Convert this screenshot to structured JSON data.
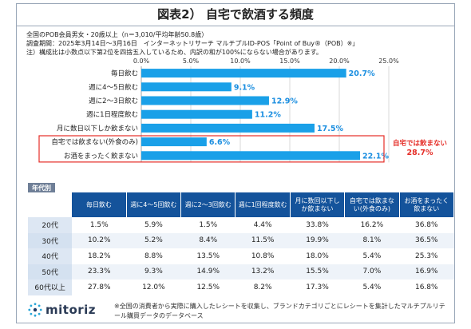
{
  "title": "図表2） 自宅で飲酒する頻度",
  "meta": {
    "line1": "全国のPOB会員男女・20歳以上（n＝3,010/平均年齢50.8歳）",
    "line2": "調査期間：2025年3月14日～3月16日　インターネットリサーチ マルチプルID-POS「Point of Buy®（POB）※」",
    "line3": "注）構成比は小数点以下第2位を四捨五入しているため、内訳の和が100%にならない場合があります。"
  },
  "chart_data": {
    "type": "bar",
    "orientation": "horizontal",
    "categories": [
      "毎日飲む",
      "週に4～5日飲む",
      "週に2～3日飲む",
      "週に1日程度飲む",
      "月に数日以下しか飲まない",
      "自宅では飲まない(外食のみ)",
      "お酒をまったく飲まない"
    ],
    "values": [
      20.7,
      9.1,
      12.9,
      11.2,
      17.5,
      6.6,
      22.1
    ],
    "value_labels": [
      "20.7%",
      "9.1%",
      "12.9%",
      "11.2%",
      "17.5%",
      "6.6%",
      "22.1%"
    ],
    "xlim": [
      0,
      25
    ],
    "ticks": [
      "0.0%",
      "5.0%",
      "10.0%",
      "15.0%",
      "20.0%",
      "25.0%"
    ],
    "grid": true,
    "bar_color": "#1aa0e8",
    "label_color": "#1a8ee0",
    "highlight": {
      "label_line1": "自宅では飲まない",
      "label_line2": "28.7%",
      "color": "#e52d27"
    }
  },
  "table": {
    "section_label": "年代別",
    "headers": [
      "毎日飲む",
      "週に4～5回飲む",
      "週に2～3回飲む",
      "週に1回程度飲む",
      "月に数回以下しか飲まない",
      "自宅では飲まない(外食のみ)",
      "お酒をまったく飲まない"
    ],
    "rows": [
      {
        "label": "20代",
        "values": [
          "1.5%",
          "5.9%",
          "1.5%",
          "4.4%",
          "33.8%",
          "16.2%",
          "36.8%"
        ]
      },
      {
        "label": "30代",
        "values": [
          "10.2%",
          "5.2%",
          "8.4%",
          "11.5%",
          "19.9%",
          "8.1%",
          "36.5%"
        ]
      },
      {
        "label": "40代",
        "values": [
          "18.2%",
          "8.8%",
          "13.5%",
          "10.8%",
          "18.0%",
          "5.4%",
          "25.3%"
        ]
      },
      {
        "label": "50代",
        "values": [
          "23.3%",
          "9.3%",
          "14.9%",
          "13.2%",
          "15.5%",
          "7.0%",
          "16.9%"
        ]
      },
      {
        "label": "60代以上",
        "values": [
          "27.8%",
          "12.0%",
          "12.5%",
          "8.2%",
          "17.3%",
          "5.4%",
          "16.8%"
        ]
      }
    ]
  },
  "footer": {
    "logo_text": "mitoriz",
    "logo_icon": "dotted-ring-logo-icon",
    "footnote": "※全国の消費者から実際に購入したレシートを収集し、ブランドカテゴリごとにレシートを集計したマルチプルリテール購買データのデータベース"
  }
}
